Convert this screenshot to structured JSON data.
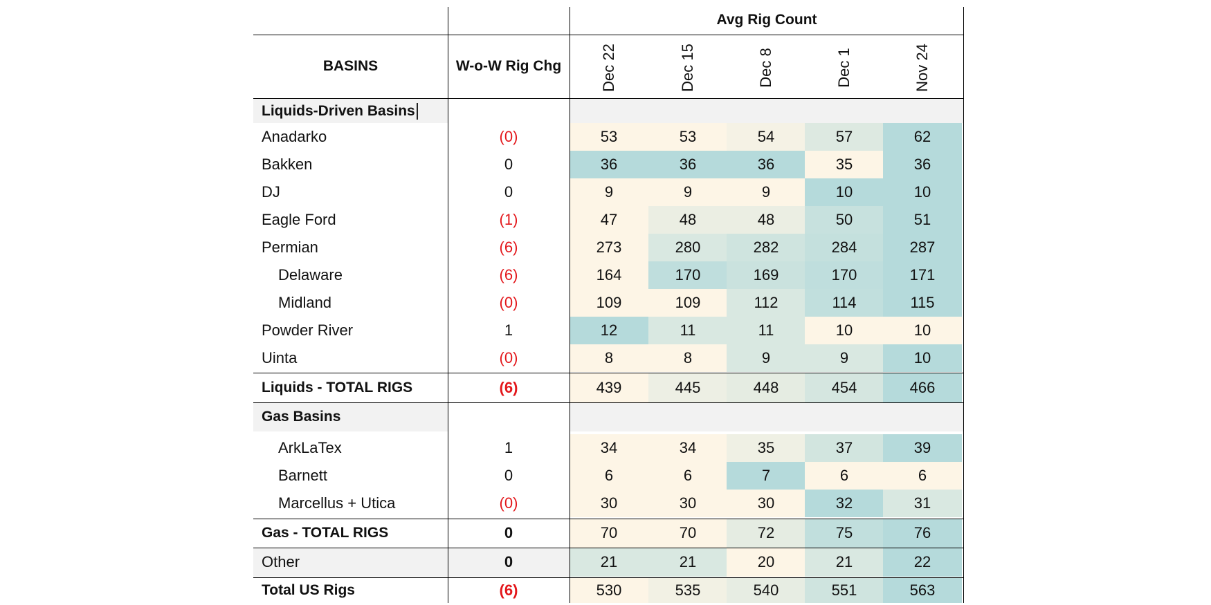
{
  "header": {
    "group_title": "Avg Rig Count",
    "basins_label": "BASINS",
    "change_label": "W-o-W Rig Chg",
    "dates": [
      "Dec 22",
      "Dec 15",
      "Dec 8",
      "Dec 1",
      "Nov 24"
    ]
  },
  "heat_colors": {
    "low": "#fdf5e6",
    "high": "#b5dadb"
  },
  "sections": {
    "liquids": "Liquids-Driven Basins",
    "gas": "Gas Basins"
  },
  "rows": [
    {
      "name": "Anadarko",
      "change": "(0)",
      "negative": true,
      "values": [
        53,
        53,
        54,
        57,
        62
      ]
    },
    {
      "name": "Bakken",
      "change": "0",
      "negative": false,
      "values": [
        36,
        36,
        36,
        35,
        36
      ]
    },
    {
      "name": "DJ",
      "change": "0",
      "negative": false,
      "values": [
        9,
        9,
        9,
        10,
        10
      ]
    },
    {
      "name": "Eagle Ford",
      "change": "(1)",
      "negative": true,
      "values": [
        47,
        48,
        48,
        50,
        51
      ]
    },
    {
      "name": "Permian",
      "change": "(6)",
      "negative": true,
      "values": [
        273,
        280,
        282,
        284,
        287
      ]
    },
    {
      "name": "Delaware",
      "indent": true,
      "change": "(6)",
      "negative": true,
      "values": [
        164,
        170,
        169,
        170,
        171
      ]
    },
    {
      "name": "Midland",
      "indent": true,
      "change": "(0)",
      "negative": true,
      "values": [
        109,
        109,
        112,
        114,
        115
      ]
    },
    {
      "name": "Powder River",
      "change": "1",
      "negative": false,
      "values": [
        12,
        11,
        11,
        10,
        10
      ]
    },
    {
      "name": "Uinta",
      "change": "(0)",
      "negative": true,
      "values": [
        8,
        8,
        9,
        9,
        10
      ]
    },
    {
      "name": "Liquids - TOTAL RIGS",
      "bold": true,
      "change": "(6)",
      "negative": true,
      "values": [
        439,
        445,
        448,
        454,
        466
      ]
    },
    {
      "name": "ArkLaTex",
      "indent": true,
      "change": "1",
      "negative": false,
      "values": [
        34,
        34,
        35,
        37,
        39
      ]
    },
    {
      "name": "Barnett",
      "indent": true,
      "change": "0",
      "negative": false,
      "values": [
        6,
        6,
        7,
        6,
        6
      ]
    },
    {
      "name": "Marcellus + Utica",
      "indent": true,
      "change": "(0)",
      "negative": true,
      "values": [
        30,
        30,
        30,
        32,
        31
      ]
    },
    {
      "name": "Gas - TOTAL RIGS",
      "bold": true,
      "change": "0",
      "negative": false,
      "values": [
        70,
        70,
        72,
        75,
        76
      ]
    },
    {
      "name": "Other",
      "shaded": true,
      "change": "0",
      "negative": false,
      "changeBold": true,
      "values": [
        21,
        21,
        20,
        21,
        22
      ]
    },
    {
      "name": "Total US Rigs",
      "bold": true,
      "change": "(6)",
      "negative": true,
      "values": [
        530,
        535,
        540,
        551,
        563
      ]
    }
  ]
}
